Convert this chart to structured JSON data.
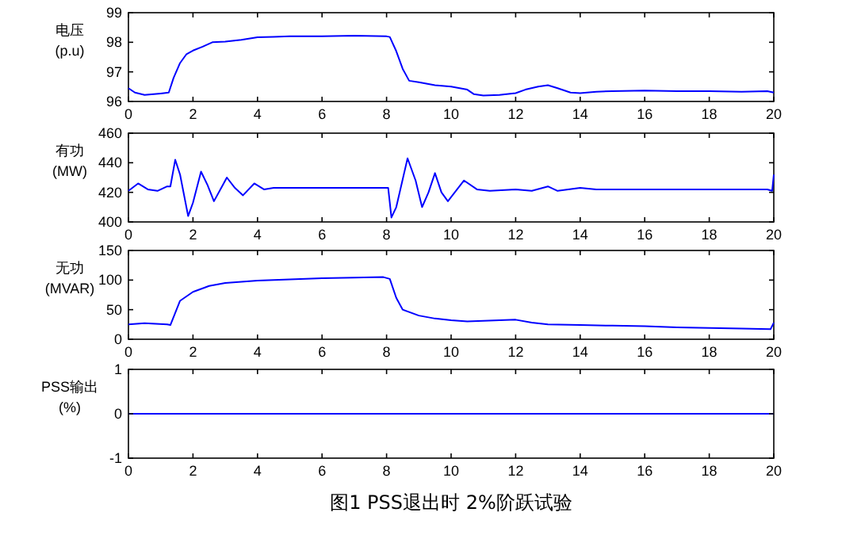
{
  "chart_data": [
    {
      "type": "line",
      "ylabel": "电压\n(p.u)",
      "xlim": [
        0,
        20
      ],
      "xticks": [
        0,
        2,
        4,
        6,
        8,
        10,
        12,
        14,
        16,
        18,
        20
      ],
      "ylim": [
        96,
        99
      ],
      "yticks": [
        96,
        97,
        98,
        99
      ],
      "series": [
        {
          "color": "#0000ff",
          "x": [
            0,
            0.2,
            0.5,
            1.0,
            1.25,
            1.4,
            1.6,
            1.8,
            2.0,
            2.3,
            2.6,
            3.0,
            3.5,
            4.0,
            4.5,
            5,
            6,
            7,
            8.0,
            8.1,
            8.3,
            8.5,
            8.7,
            9,
            9.5,
            10,
            10.5,
            10.7,
            11,
            11.5,
            12,
            12.3,
            12.7,
            13.0,
            13.3,
            13.7,
            14,
            14.5,
            15,
            16,
            17,
            18,
            19,
            19.8,
            20
          ],
          "values": [
            96.45,
            96.3,
            96.22,
            96.27,
            96.3,
            96.8,
            97.3,
            97.6,
            97.72,
            97.85,
            98.0,
            98.02,
            98.08,
            98.17,
            98.18,
            98.2,
            98.2,
            98.22,
            98.2,
            98.18,
            97.7,
            97.1,
            96.7,
            96.65,
            96.55,
            96.5,
            96.4,
            96.25,
            96.2,
            96.22,
            96.28,
            96.4,
            96.5,
            96.55,
            96.45,
            96.3,
            96.28,
            96.33,
            96.35,
            96.37,
            96.35,
            96.35,
            96.33,
            96.35,
            96.3
          ]
        }
      ]
    },
    {
      "type": "line",
      "ylabel": "有功\n(MW)",
      "xlim": [
        0,
        20
      ],
      "xticks": [
        0,
        2,
        4,
        6,
        8,
        10,
        12,
        14,
        16,
        18,
        20
      ],
      "ylim": [
        400,
        460
      ],
      "yticks": [
        400,
        420,
        440,
        460
      ],
      "series": [
        {
          "color": "#0000ff",
          "x": [
            0,
            0.3,
            0.6,
            0.9,
            1.2,
            1.3,
            1.45,
            1.6,
            1.85,
            2.0,
            2.25,
            2.45,
            2.65,
            2.9,
            3.05,
            3.3,
            3.55,
            3.9,
            4.2,
            4.5,
            5,
            5.5,
            6,
            7,
            8.05,
            8.15,
            8.3,
            8.65,
            8.9,
            9.1,
            9.3,
            9.5,
            9.7,
            9.9,
            10.4,
            10.8,
            11.2,
            12,
            12.5,
            13.0,
            13.3,
            14,
            14.5,
            16,
            18,
            19.8,
            19.95,
            20
          ],
          "values": [
            421,
            426,
            422,
            421,
            424,
            424,
            442,
            432,
            404,
            413,
            434,
            425,
            414,
            424,
            430,
            423,
            418,
            426,
            422,
            423,
            423,
            423,
            423,
            423,
            423,
            403,
            410,
            443,
            428,
            410,
            420,
            433,
            420,
            414,
            428,
            422,
            421,
            422,
            421,
            424,
            421,
            423,
            422,
            422,
            422,
            422,
            421,
            432
          ]
        }
      ]
    },
    {
      "type": "line",
      "ylabel": "无功\n(MVAR)",
      "xlim": [
        0,
        20
      ],
      "xticks": [
        0,
        2,
        4,
        6,
        8,
        10,
        12,
        14,
        16,
        18,
        20
      ],
      "ylim": [
        0,
        150
      ],
      "yticks": [
        0,
        50,
        100,
        150
      ],
      "series": [
        {
          "color": "#0000ff",
          "x": [
            0,
            0.5,
            1.2,
            1.3,
            1.6,
            2,
            2.5,
            3,
            3.5,
            4,
            5,
            6,
            7,
            7.9,
            8.1,
            8.3,
            8.5,
            9,
            9.5,
            10,
            10.5,
            11,
            11.5,
            12,
            12.5,
            13,
            14,
            15,
            16,
            17,
            18,
            19,
            19.9,
            20
          ],
          "values": [
            25,
            27,
            25,
            24,
            65,
            80,
            90,
            95,
            97,
            99,
            101,
            103,
            104,
            105,
            102,
            70,
            50,
            40,
            35,
            32,
            30,
            31,
            32,
            33,
            28,
            25,
            24,
            23,
            22,
            20,
            19,
            18,
            17,
            28
          ]
        }
      ]
    },
    {
      "type": "line",
      "ylabel": "PSS输出\n(%)",
      "xlim": [
        0,
        20
      ],
      "xticks": [
        0,
        2,
        4,
        6,
        8,
        10,
        12,
        14,
        16,
        18,
        20
      ],
      "ylim": [
        -1,
        1
      ],
      "yticks": [
        -1,
        0,
        1
      ],
      "annotations": [
        "图1 PSS退出时 2%阶跃试验"
      ],
      "series": [
        {
          "color": "#0000ff",
          "x": [
            0,
            20
          ],
          "values": [
            0,
            0
          ]
        }
      ]
    }
  ]
}
